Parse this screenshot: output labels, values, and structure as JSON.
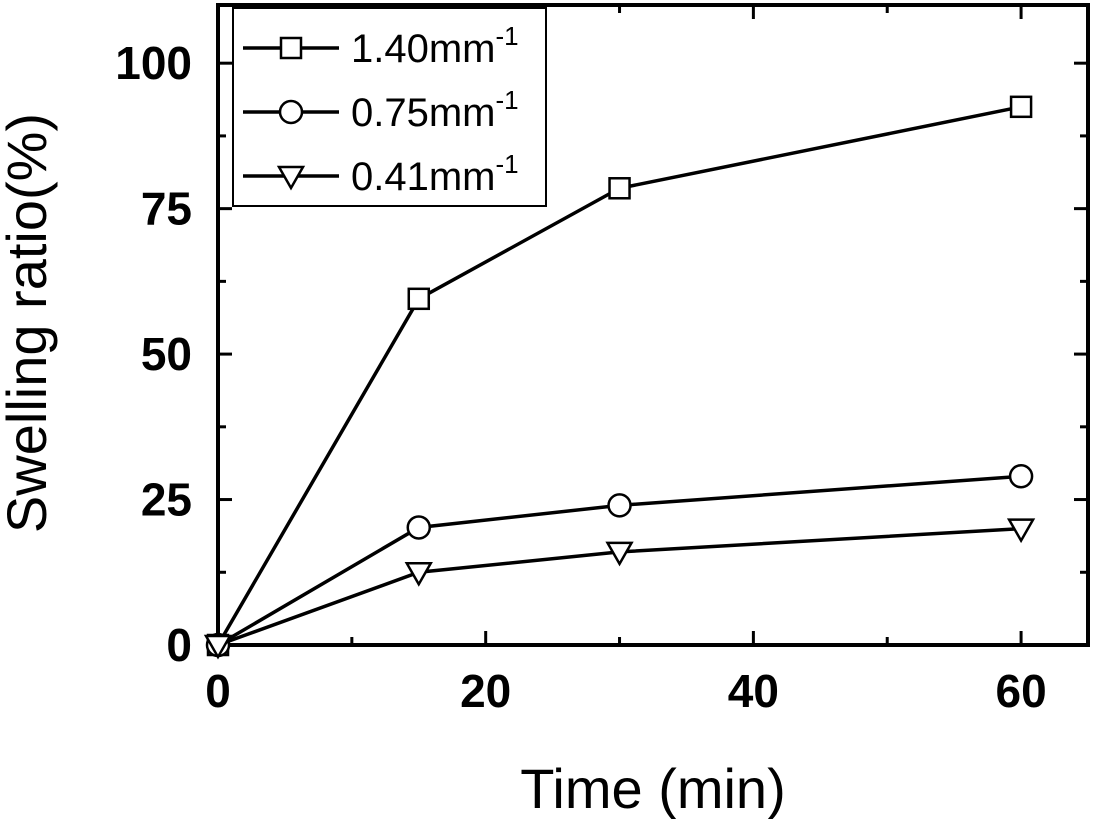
{
  "chart_data": {
    "type": "line",
    "xlabel": "Time (min)",
    "ylabel": "Swelling ratio(%)",
    "xlim": [
      0,
      65
    ],
    "ylim": [
      0,
      110
    ],
    "xticks": [
      0,
      20,
      40,
      60
    ],
    "yticks": [
      0,
      25,
      50,
      75,
      100
    ],
    "grid": false,
    "legend_position": "top-left",
    "series": [
      {
        "name": "1.40mm",
        "name_sup": "-1",
        "marker": "square",
        "x": [
          0,
          15,
          30,
          60
        ],
        "y": [
          0,
          59.5,
          78.5,
          92.5
        ]
      },
      {
        "name": "0.75mm",
        "name_sup": "-1",
        "marker": "circle",
        "x": [
          0,
          15,
          30,
          60
        ],
        "y": [
          0,
          20.2,
          24,
          29
        ]
      },
      {
        "name": "0.41mm",
        "name_sup": "-1",
        "marker": "triangle-down",
        "x": [
          0,
          15,
          30,
          60
        ],
        "y": [
          0,
          12.5,
          16,
          20
        ]
      }
    ]
  }
}
